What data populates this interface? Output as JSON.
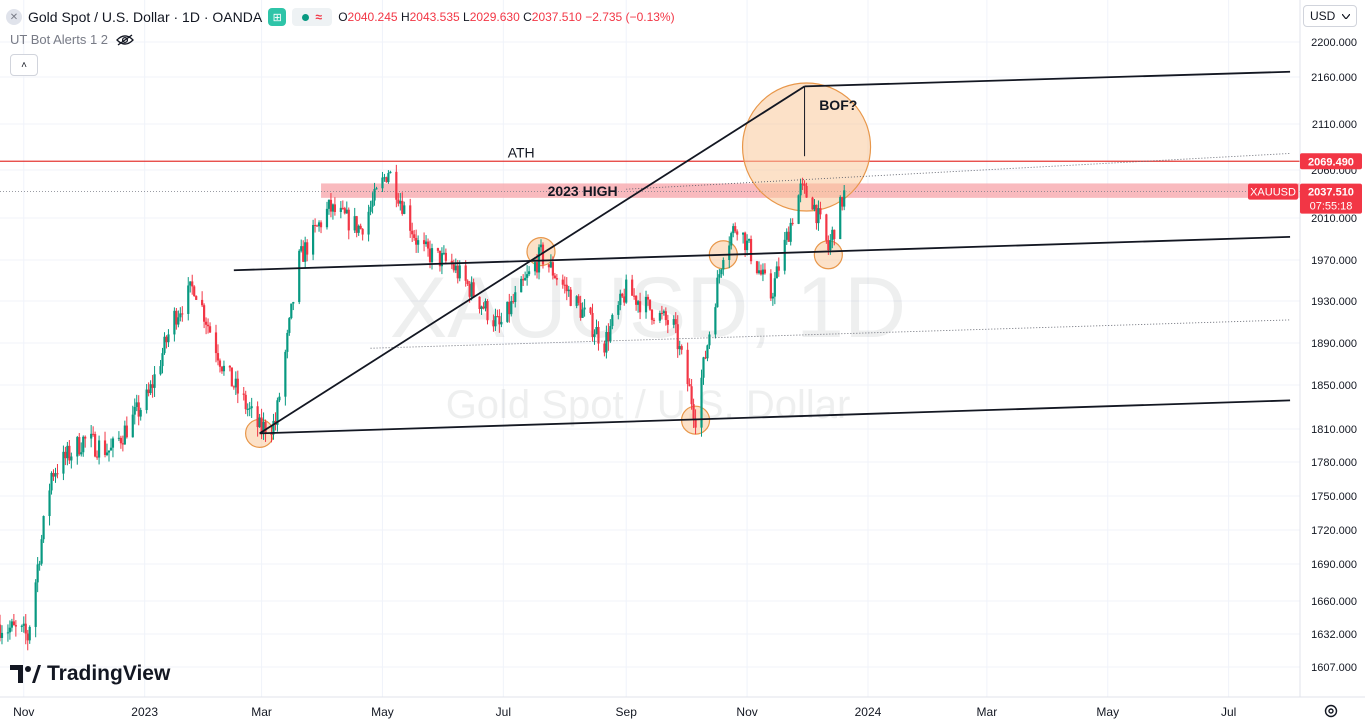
{
  "header": {
    "symbol_logo": "✕",
    "title": "Gold Spot / U.S. Dollar · 1D · OANDA",
    "pill_icon": "⊞",
    "wave_icon": "≈",
    "ohlc": {
      "o_label": "O",
      "o": "2040.245",
      "h_label": "H",
      "h": "2043.535",
      "l_label": "L",
      "l": "2029.630",
      "c_label": "C",
      "c": "2037.510",
      "change": "−2.735 (−0.13%)"
    }
  },
  "indicator": {
    "label": "UT Bot Alerts 1 2",
    "icon": "eye-off-icon"
  },
  "collapse_icon": "˄",
  "currency": {
    "label": "USD",
    "icon": "chevron-down-icon"
  },
  "brand": {
    "name": "TradingView"
  },
  "watermark": {
    "symbol": "XAUUSD, 1D",
    "name": "Gold Spot / U.S. Dollar"
  },
  "price_axis": {
    "ticks": [
      "2200.000",
      "2160.000",
      "2110.000",
      "2060.000",
      "2010.000",
      "1970.000",
      "1930.000",
      "1890.000",
      "1850.000",
      "1810.000",
      "1780.000",
      "1750.000",
      "1720.000",
      "1690.000",
      "1660.000",
      "1632.000",
      "1607.000"
    ],
    "ath_label": "2069.490",
    "symbol_tag": "XAUUSD",
    "last_price": "2037.510",
    "countdown": "07:55:18"
  },
  "time_axis": {
    "ticks": [
      "Nov",
      "2023",
      "Mar",
      "May",
      "Jul",
      "Sep",
      "Nov",
      "2024",
      "Mar",
      "May",
      "Jul"
    ]
  },
  "annotations": {
    "ath": "ATH",
    "high_2023": "2023 HIGH",
    "bof": "BOF?"
  },
  "colors": {
    "up": "#089981",
    "down": "#f23645",
    "zone": "#f7a9ae",
    "circle_fill": "#f9c89a",
    "circle_stroke": "#e8974a",
    "ath_line": "#e53935",
    "trend": "#131722",
    "tag_red": "#f23645"
  },
  "chart_data": {
    "type": "candlestick",
    "title": "Gold Spot / U.S. Dollar · 1D · OANDA",
    "y_ticks": [
      2200,
      2160,
      2110,
      2060,
      2010,
      1970,
      1930,
      1890,
      1850,
      1810,
      1780,
      1750,
      1720,
      1690,
      1660,
      1632,
      1607
    ],
    "x_ticks": [
      "Nov",
      "2023",
      "Mar",
      "May",
      "Jul",
      "Sep",
      "Nov",
      "2024",
      "Mar",
      "May",
      "Jul"
    ],
    "x_range": [
      "2022-10-20",
      "2024-08-05"
    ],
    "y_range": [
      1590,
      2225
    ],
    "ath": 2069.49,
    "last": 2037.51,
    "zone_2023_high": [
      2031,
      2046
    ],
    "path_close": [
      [
        "2022-10-20",
        1640
      ],
      [
        "2022-11-03",
        1630
      ],
      [
        "2022-11-15",
        1770
      ],
      [
        "2022-12-01",
        1800
      ],
      [
        "2022-12-15",
        1790
      ],
      [
        "2023-01-03",
        1840
      ],
      [
        "2023-01-16",
        1915
      ],
      [
        "2023-01-26",
        1945
      ],
      [
        "2023-02-10",
        1865
      ],
      [
        "2023-02-28",
        1810
      ],
      [
        "2023-03-08",
        1815
      ],
      [
        "2023-03-20",
        1970
      ],
      [
        "2023-04-04",
        2020
      ],
      [
        "2023-04-20",
        2000
      ],
      [
        "2023-05-04",
        2060
      ],
      [
        "2023-05-20",
        1980
      ],
      [
        "2023-06-05",
        1965
      ],
      [
        "2023-06-29",
        1905
      ],
      [
        "2023-07-20",
        1975
      ],
      [
        "2023-08-21",
        1890
      ],
      [
        "2023-09-01",
        1940
      ],
      [
        "2023-09-25",
        1905
      ],
      [
        "2023-10-06",
        1822
      ],
      [
        "2023-10-20",
        1980
      ],
      [
        "2023-10-27",
        2005
      ],
      [
        "2023-11-13",
        1935
      ],
      [
        "2023-11-28",
        2040
      ],
      [
        "2023-12-04",
        2028
      ],
      [
        "2023-12-12",
        1980
      ],
      [
        "2023-12-20",
        2035
      ]
    ],
    "lines": [
      {
        "name": "upper channel",
        "from": [
          "2023-11-30",
          2150
        ],
        "to": [
          "2024-08-01",
          2166
        ]
      },
      {
        "name": "middle channel",
        "from": [
          "2023-02-15",
          1960
        ],
        "to": [
          "2024-08-01",
          1992
        ]
      },
      {
        "name": "dotted mid channel",
        "from": [
          "2023-04-25",
          1885
        ],
        "to": [
          "2024-08-01",
          1912
        ]
      },
      {
        "name": "lower channel",
        "from": [
          "2023-02-28",
          1806
        ],
        "to": [
          "2024-08-01",
          1836
        ]
      },
      {
        "name": "dotted upper channel",
        "from": [
          "2023-09-01",
          2040
        ],
        "to": [
          "2024-08-01",
          2078
        ]
      },
      {
        "name": "trendline",
        "from": [
          "2023-02-28",
          1806
        ],
        "to": [
          "2023-11-30",
          2150
        ]
      }
    ],
    "circles": [
      {
        "date": "2023-02-28",
        "price": 1806,
        "r": 14
      },
      {
        "date": "2023-07-20",
        "price": 1978,
        "r": 14
      },
      {
        "date": "2023-10-06",
        "price": 1818,
        "r": 14
      },
      {
        "date": "2023-10-20",
        "price": 1975,
        "r": 14
      },
      {
        "date": "2023-12-12",
        "price": 1975,
        "r": 14
      },
      {
        "date": "2023-12-01",
        "price": 2085,
        "r": 64
      }
    ]
  }
}
